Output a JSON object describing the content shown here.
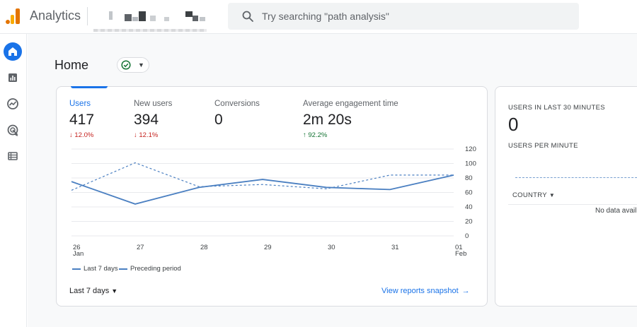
{
  "app": {
    "title": "Analytics"
  },
  "search": {
    "placeholder": "Try searching \"path analysis\""
  },
  "page": {
    "title": "Home"
  },
  "metrics": [
    {
      "label": "Users",
      "value": "417",
      "delta": "12.0%",
      "direction": "down",
      "arrow": "↓"
    },
    {
      "label": "New users",
      "value": "394",
      "delta": "12.1%",
      "direction": "down",
      "arrow": "↓"
    },
    {
      "label": "Conversions",
      "value": "0",
      "delta": "",
      "direction": "",
      "arrow": ""
    },
    {
      "label": "Average engagement time",
      "value": "2m 20s",
      "delta": "92.2%",
      "direction": "up",
      "arrow": "↑"
    }
  ],
  "chart_data": {
    "type": "line",
    "x": [
      "26 Jan",
      "27",
      "28",
      "29",
      "30",
      "31",
      "01 Feb"
    ],
    "x_ticks": [
      {
        "top": "26",
        "bottom": "Jan"
      },
      {
        "top": "27",
        "bottom": ""
      },
      {
        "top": "28",
        "bottom": ""
      },
      {
        "top": "29",
        "bottom": ""
      },
      {
        "top": "30",
        "bottom": ""
      },
      {
        "top": "31",
        "bottom": ""
      },
      {
        "top": "01",
        "bottom": "Feb"
      }
    ],
    "y_ticks": [
      0,
      20,
      40,
      60,
      80,
      100,
      120
    ],
    "ylim": [
      0,
      120
    ],
    "grid": true,
    "series": [
      {
        "name": "Last 7 days",
        "style": "solid",
        "color": "#4a7fc1",
        "values": [
          75,
          44,
          67,
          78,
          67,
          64,
          84
        ]
      },
      {
        "name": "Preceding period",
        "style": "dashed",
        "color": "#4a7fc1",
        "values": [
          63,
          101,
          68,
          71,
          65,
          84,
          84
        ]
      }
    ]
  },
  "footer": {
    "date_range": "Last 7 days",
    "snapshot_link": "View reports snapshot"
  },
  "realtime": {
    "heading": "USERS IN LAST 30 MINUTES",
    "value": "0",
    "sub_heading": "USERS PER MINUTE",
    "column": "COUNTRY",
    "empty_text": "No data avail"
  },
  "nav": [
    "home-icon",
    "reports-icon",
    "explore-icon",
    "advertising-icon",
    "configure-icon"
  ],
  "colors": {
    "accent": "#1a73e8",
    "line": "#4a7fc1",
    "down": "#c5221f",
    "up": "#137333"
  }
}
